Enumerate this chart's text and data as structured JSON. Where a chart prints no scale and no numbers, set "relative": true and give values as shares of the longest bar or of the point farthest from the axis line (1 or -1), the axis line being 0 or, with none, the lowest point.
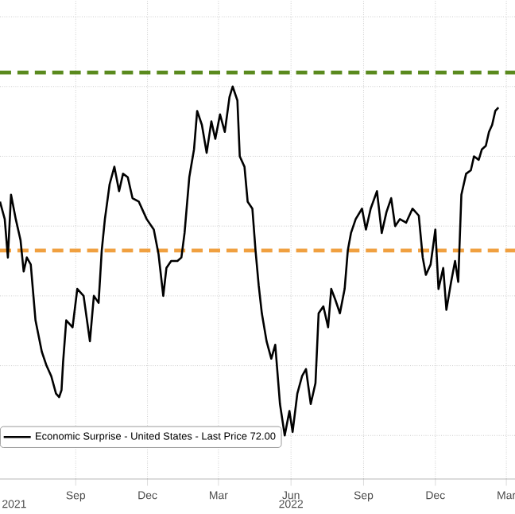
{
  "chart_data": {
    "type": "line",
    "relative": true,
    "grid": true,
    "legend": "bottom left",
    "marker": "none",
    "line_style": "solid",
    "xlim": [
      "2021-05-28",
      "2023-03-12"
    ],
    "xticks": [
      {
        "value": "2021-09-01",
        "label": "Sep"
      },
      {
        "value": "2021-12-01",
        "label": "Dec"
      },
      {
        "value": "2022-03-01",
        "label": "Mar"
      },
      {
        "value": "2022-06-01",
        "label": "Jun"
      },
      {
        "value": "2022-09-01",
        "label": "Sep"
      },
      {
        "value": "2022-12-01",
        "label": "Dec"
      },
      {
        "value": "2023-03-01",
        "label": "Mar"
      }
    ],
    "annotations": [
      "2021",
      "2022"
    ],
    "ref_lines": [
      {
        "axis": "y",
        "value": 1.04,
        "color": "#5a8a1e",
        "line_style": "dashed"
      },
      {
        "axis": "y",
        "value": 0.53,
        "color": "#f0a040",
        "line_style": "dashed"
      }
    ],
    "x": [
      "2021-05-28",
      "2021-06-03",
      "2021-06-07",
      "2021-06-11",
      "2021-06-17",
      "2021-06-23",
      "2021-06-27",
      "2021-07-01",
      "2021-07-06",
      "2021-07-12",
      "2021-07-20",
      "2021-07-26",
      "2021-08-01",
      "2021-08-07",
      "2021-08-11",
      "2021-08-14",
      "2021-08-16",
      "2021-08-20",
      "2021-08-24",
      "2021-08-28",
      "2021-09-03",
      "2021-09-11",
      "2021-09-19",
      "2021-09-24",
      "2021-09-30",
      "2021-10-04",
      "2021-10-08",
      "2021-10-14",
      "2021-10-20",
      "2021-10-26",
      "2021-10-31",
      "2021-11-06",
      "2021-11-12",
      "2021-11-20",
      "2021-11-30",
      "2021-12-09",
      "2021-12-15",
      "2021-12-21",
      "2021-12-25",
      "2021-12-31",
      "2022-01-08",
      "2022-01-13",
      "2022-01-17",
      "2022-01-23",
      "2022-01-29",
      "2022-02-02",
      "2022-02-08",
      "2022-02-14",
      "2022-02-20",
      "2022-02-25",
      "2022-03-03",
      "2022-03-09",
      "2022-03-15",
      "2022-03-19",
      "2022-03-25",
      "2022-03-28",
      "2022-04-03",
      "2022-04-07",
      "2022-04-13",
      "2022-04-17",
      "2022-04-21",
      "2022-04-25",
      "2022-05-01",
      "2022-05-07",
      "2022-05-12",
      "2022-05-18",
      "2022-05-24",
      "2022-05-30",
      "2022-06-03",
      "2022-06-09",
      "2022-06-15",
      "2022-06-20",
      "2022-06-26",
      "2022-07-02",
      "2022-07-06",
      "2022-07-12",
      "2022-07-18",
      "2022-07-22",
      "2022-07-27",
      "2022-08-02",
      "2022-08-08",
      "2022-08-12",
      "2022-08-16",
      "2022-08-22",
      "2022-08-30",
      "2022-09-04",
      "2022-09-10",
      "2022-09-18",
      "2022-09-24",
      "2022-09-30",
      "2022-10-06",
      "2022-10-11",
      "2022-10-17",
      "2022-10-25",
      "2022-11-02",
      "2022-11-10",
      "2022-11-15",
      "2022-11-19",
      "2022-11-25",
      "2022-12-01",
      "2022-12-05",
      "2022-12-11",
      "2022-12-15",
      "2022-12-21",
      "2022-12-26",
      "2022-12-30",
      "2023-01-03",
      "2023-01-09",
      "2023-01-15",
      "2023-01-19",
      "2023-01-25",
      "2023-01-29",
      "2023-02-03",
      "2023-02-07",
      "2023-02-11",
      "2023-02-15",
      "2023-02-19"
    ],
    "series": [
      {
        "name": "Economic Surprise - United States - Last Price 72.00",
        "color": "#000000",
        "values": [
          0.67,
          0.62,
          0.51,
          0.69,
          0.62,
          0.56,
          0.47,
          0.51,
          0.49,
          0.33,
          0.24,
          0.2,
          0.17,
          0.12,
          0.11,
          0.13,
          0.21,
          0.33,
          0.32,
          0.31,
          0.42,
          0.4,
          0.27,
          0.4,
          0.38,
          0.53,
          0.62,
          0.72,
          0.77,
          0.7,
          0.75,
          0.74,
          0.68,
          0.67,
          0.62,
          0.59,
          0.52,
          0.4,
          0.48,
          0.5,
          0.5,
          0.51,
          0.58,
          0.74,
          0.82,
          0.93,
          0.89,
          0.81,
          0.9,
          0.85,
          0.92,
          0.87,
          0.97,
          1.0,
          0.96,
          0.8,
          0.77,
          0.67,
          0.65,
          0.53,
          0.43,
          0.35,
          0.27,
          0.22,
          0.26,
          0.09,
          0.0,
          0.07,
          0.01,
          0.12,
          0.17,
          0.19,
          0.09,
          0.15,
          0.35,
          0.37,
          0.31,
          0.42,
          0.39,
          0.35,
          0.42,
          0.53,
          0.58,
          0.62,
          0.65,
          0.59,
          0.65,
          0.7,
          0.58,
          0.64,
          0.68,
          0.6,
          0.62,
          0.61,
          0.65,
          0.63,
          0.51,
          0.46,
          0.49,
          0.59,
          0.42,
          0.48,
          0.36,
          0.44,
          0.5,
          0.44,
          0.69,
          0.75,
          0.76,
          0.8,
          0.79,
          0.82,
          0.83,
          0.87,
          0.89,
          0.93,
          0.94
        ]
      }
    ]
  }
}
